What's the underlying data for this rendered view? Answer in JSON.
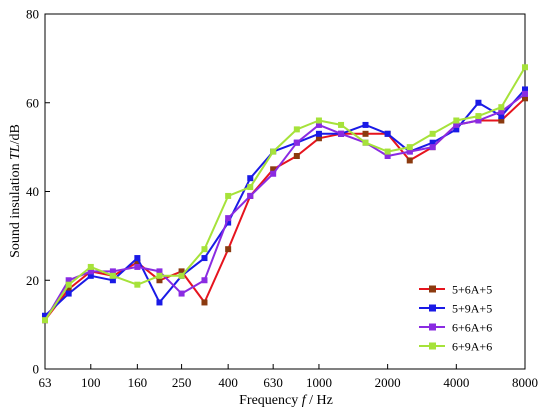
{
  "chart_data": {
    "type": "line",
    "xlabel": {
      "prefix": "Frequency ",
      "var": "f",
      "suffix": " / Hz"
    },
    "ylabel": {
      "prefix": "Sound insulation ",
      "var": "TL",
      "suffix": "/dB"
    },
    "x_scale": "log",
    "xlim": [
      63,
      8000
    ],
    "ylim": [
      0,
      80
    ],
    "x_ticks": [
      63,
      100,
      160,
      250,
      400,
      630,
      1000,
      2000,
      4000,
      8000
    ],
    "x_tick_labels": [
      "63",
      "100",
      "160",
      "250",
      "400",
      "630",
      "1000",
      "2000",
      "4000",
      "8000"
    ],
    "y_ticks": [
      0,
      20,
      40,
      60,
      80
    ],
    "y_tick_labels": [
      "0",
      "20",
      "40",
      "60",
      "80"
    ],
    "grid": false,
    "legend_position": "bottom-right",
    "x": [
      63,
      80,
      100,
      125,
      160,
      200,
      250,
      315,
      400,
      500,
      630,
      800,
      1000,
      1250,
      1600,
      2000,
      2500,
      3150,
      4000,
      5000,
      6300,
      8000
    ],
    "series": [
      {
        "name": "5+6A+5",
        "color": "#8B3A0F",
        "marker": "square",
        "values": [
          11,
          18,
          22,
          21,
          24,
          20,
          22,
          15,
          27,
          39,
          45,
          48,
          52,
          53,
          53,
          53,
          47,
          50,
          55,
          56,
          56,
          61
        ]
      },
      {
        "name": "5+9A+5",
        "color": "#1A1AE6",
        "marker": "square",
        "values": [
          12,
          17,
          21,
          20,
          25,
          15,
          21,
          25,
          33,
          43,
          49,
          51,
          53,
          53,
          55,
          53,
          49,
          51,
          54,
          60,
          57,
          63
        ]
      },
      {
        "name": "6+6A+6",
        "color": "#8A2BE2",
        "marker": "square",
        "values": [
          11,
          20,
          22,
          22,
          23,
          22,
          17,
          20,
          34,
          39,
          44,
          51,
          55,
          53,
          51,
          48,
          49,
          50,
          55,
          56,
          58,
          62
        ]
      },
      {
        "name": "6+9A+6",
        "color": "#A6E23A",
        "marker": "square",
        "values": [
          11,
          19,
          23,
          21,
          19,
          21,
          21,
          27,
          39,
          41,
          49,
          54,
          56,
          55,
          51,
          49,
          50,
          53,
          56,
          57,
          59,
          68
        ]
      }
    ],
    "line_color_override": {
      "5+6A+5": "#E6141E"
    }
  }
}
